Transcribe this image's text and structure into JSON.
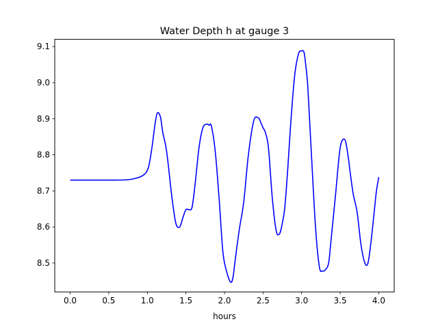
{
  "chart_data": {
    "type": "line",
    "title": "Water Depth h at gauge 3",
    "xlabel": "hours",
    "ylabel": "",
    "xlim": [
      -0.2,
      4.2
    ],
    "ylim": [
      8.42,
      9.12
    ],
    "xticks": [
      0.0,
      0.5,
      1.0,
      1.5,
      2.0,
      2.5,
      3.0,
      3.5,
      4.0
    ],
    "xtick_labels": [
      "0.0",
      "0.5",
      "1.0",
      "1.5",
      "2.0",
      "2.5",
      "3.0",
      "3.5",
      "4.0"
    ],
    "yticks": [
      8.5,
      8.6,
      8.7,
      8.8,
      8.9,
      9.0,
      9.1
    ],
    "ytick_labels": [
      "8.5",
      "8.6",
      "8.7",
      "8.8",
      "8.9",
      "9.0",
      "9.1"
    ],
    "grid": false,
    "series": [
      {
        "color": "#0000ff",
        "x": [
          0.0,
          0.3,
          0.6,
          0.75,
          0.85,
          0.92,
          0.98,
          1.02,
          1.06,
          1.1,
          1.13,
          1.17,
          1.2,
          1.25,
          1.32,
          1.37,
          1.42,
          1.46,
          1.5,
          1.54,
          1.58,
          1.62,
          1.67,
          1.72,
          1.77,
          1.8,
          1.83,
          1.88,
          1.93,
          1.98,
          2.03,
          2.08,
          2.11,
          2.14,
          2.19,
          2.25,
          2.31,
          2.38,
          2.44,
          2.47,
          2.5,
          2.53,
          2.57,
          2.62,
          2.67,
          2.71,
          2.74,
          2.78,
          2.82,
          2.86,
          2.91,
          2.96,
          3.0,
          3.03,
          3.05,
          3.08,
          3.12,
          3.18,
          3.23,
          3.27,
          3.31,
          3.35,
          3.38,
          3.44,
          3.5,
          3.56,
          3.6,
          3.63,
          3.67,
          3.72,
          3.77,
          3.82,
          3.86,
          3.9,
          3.94,
          3.97,
          4.0
        ],
        "y": [
          8.73,
          8.73,
          8.73,
          8.731,
          8.735,
          8.74,
          8.75,
          8.77,
          8.82,
          8.885,
          8.916,
          8.905,
          8.862,
          8.81,
          8.68,
          8.61,
          8.6,
          8.625,
          8.648,
          8.648,
          8.655,
          8.72,
          8.82,
          8.875,
          8.885,
          8.882,
          8.88,
          8.81,
          8.68,
          8.53,
          8.475,
          8.447,
          8.46,
          8.51,
          8.59,
          8.67,
          8.8,
          8.895,
          8.902,
          8.89,
          8.875,
          8.862,
          8.82,
          8.68,
          8.59,
          8.58,
          8.6,
          8.65,
          8.76,
          8.89,
          9.02,
          9.08,
          9.088,
          9.085,
          9.055,
          8.99,
          8.83,
          8.6,
          8.49,
          8.478,
          8.482,
          8.5,
          8.56,
          8.69,
          8.82,
          8.842,
          8.8,
          8.75,
          8.69,
          8.64,
          8.55,
          8.5,
          8.5,
          8.56,
          8.64,
          8.7,
          8.738
        ]
      }
    ]
  }
}
